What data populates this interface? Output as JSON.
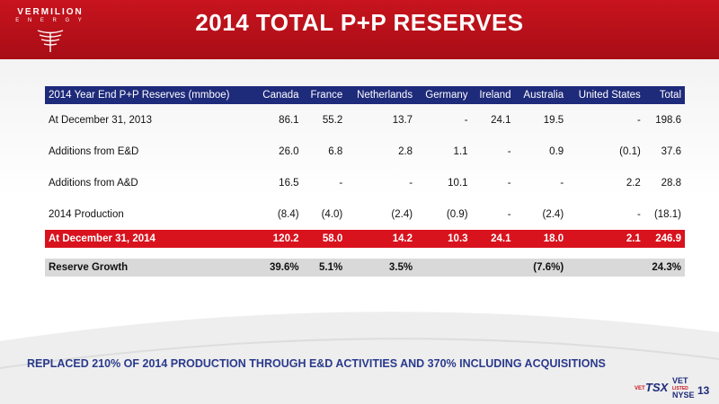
{
  "header": {
    "logo_name": "VERMILION",
    "logo_sub": "E N E R G Y",
    "title": "2014 TOTAL P+P RESERVES"
  },
  "table": {
    "headers": [
      "2014 Year End P+P Reserves (mmboe)",
      "Canada",
      "France",
      "Netherlands",
      "Germany",
      "Ireland",
      "Australia",
      "United States",
      "Total"
    ],
    "rows": [
      [
        "At December 31, 2013",
        "86.1",
        "55.2",
        "13.7",
        "-",
        "24.1",
        "19.5",
        "-",
        "198.6"
      ],
      [
        "Additions from E&D",
        "26.0",
        "6.8",
        "2.8",
        "1.1",
        "-",
        "0.9",
        "(0.1)",
        "37.6"
      ],
      [
        "Additions from A&D",
        "16.5",
        "-",
        "-",
        "10.1",
        "-",
        "-",
        "2.2",
        "28.8"
      ],
      [
        "2014 Production",
        "(8.4)",
        "(4.0)",
        "(2.4)",
        "(0.9)",
        "-",
        "(2.4)",
        "-",
        "(18.1)"
      ]
    ],
    "total_row": [
      "At December 31, 2014",
      "120.2",
      "58.0",
      "14.2",
      "10.3",
      "24.1",
      "18.0",
      "2.1",
      "246.9"
    ],
    "growth_row": [
      "Reserve Growth",
      "39.6%",
      "5.1%",
      "3.5%",
      "",
      "",
      "(7.6%)",
      "",
      "24.3%"
    ]
  },
  "footer": {
    "note": "REPLACED 210% OF 2014 PRODUCTION THROUGH E&D ACTIVITIES AND 370% INCLUDING ACQUISITIONS",
    "ticker_vet_small": "VET",
    "ticker_tsx": "TSX",
    "ticker_vet": "VET",
    "ticker_listed": "LISTED",
    "ticker_nyse": "NYSE",
    "page_number": "13"
  },
  "colors": {
    "brand_red": "#c8141e",
    "header_navy": "#1e2a7a",
    "note_blue": "#2a3a8c",
    "growth_gray": "#d9d9d9"
  }
}
